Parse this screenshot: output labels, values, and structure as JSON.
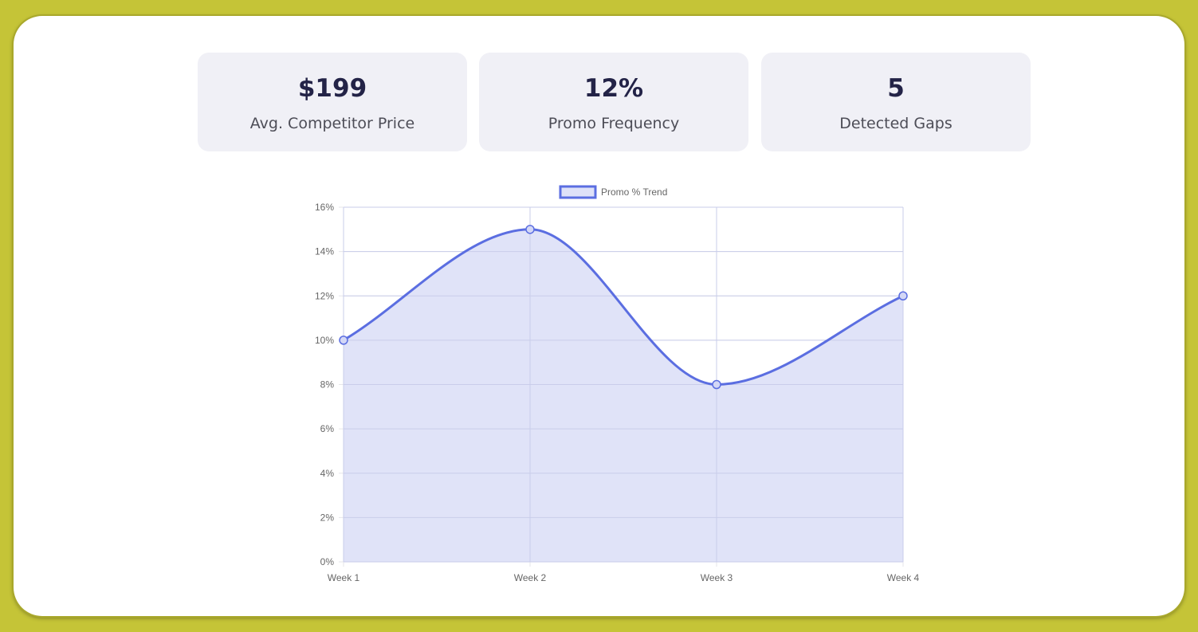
{
  "stats": [
    {
      "value": "$199",
      "label": "Avg. Competitor Price"
    },
    {
      "value": "12%",
      "label": "Promo Frequency"
    },
    {
      "value": "5",
      "label": "Detected Gaps"
    }
  ],
  "chart_data": {
    "type": "line",
    "categories": [
      "Week 1",
      "Week 2",
      "Week 3",
      "Week 4"
    ],
    "series": [
      {
        "name": "Promo % Trend",
        "values": [
          10,
          15,
          8,
          12
        ],
        "fill": true,
        "smooth": true
      }
    ],
    "y_ticks": [
      0,
      2,
      4,
      6,
      8,
      10,
      12,
      14,
      16
    ],
    "ylim": [
      0,
      16
    ],
    "y_tick_suffix": "%",
    "legend": "top-center",
    "grid": true,
    "colors": {
      "line": "#5b6ee1",
      "fill": "#dee1f8",
      "grid": "#e6e6ea",
      "tick_text": "#666666"
    }
  },
  "colors": {
    "frame_background": "#c5c437",
    "card_background": "#f0f0f6"
  }
}
